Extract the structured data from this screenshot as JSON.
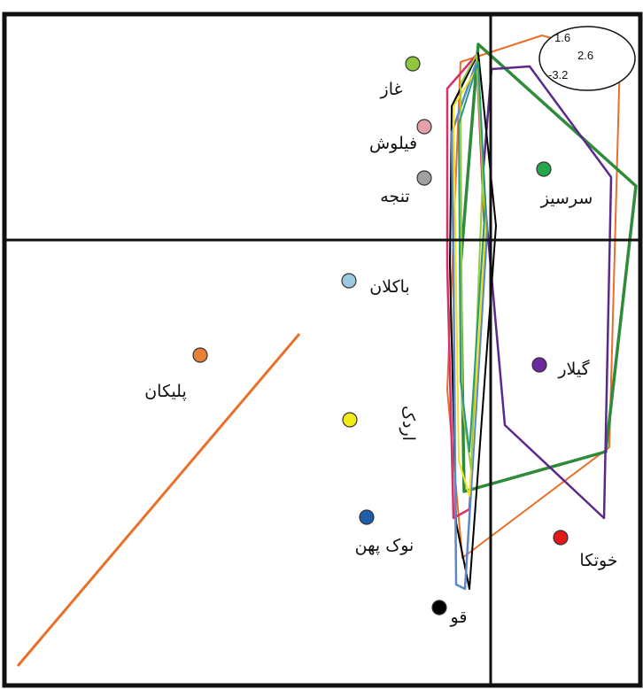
{
  "chart_data": {
    "type": "scatter",
    "title": "",
    "xlabel": "",
    "ylabel": "",
    "grid": false,
    "legend": "none",
    "points": [
      {
        "label": "غاز",
        "color": "#8dc63f"
      },
      {
        "label": "فیلوش",
        "color": "#e8a0a8"
      },
      {
        "label": "تنجه",
        "color": "#a0a0a0"
      },
      {
        "label": "سرسیز",
        "color": "#22a84a"
      },
      {
        "label": "باکلان",
        "color": "#9ec8e0"
      },
      {
        "label": "گیلار",
        "color": "#6a2aa0"
      },
      {
        "label": "پلیکان",
        "color": "#e8823a"
      },
      {
        "label": "اردک",
        "color": "#f2ea18"
      },
      {
        "label": "نوک پهن",
        "color": "#1f5fa8"
      },
      {
        "label": "خوتکا",
        "color": "#e31818"
      },
      {
        "label": "قو",
        "color": "#000000"
      }
    ],
    "inset_values": [
      "1.6",
      "2.6",
      "-3.2"
    ],
    "polygon_colors": [
      "#e8702a",
      "#2f8a3a",
      "#5a2a8a",
      "#000000",
      "#d8306a",
      "#5a88c8",
      "#f0e020",
      "#9ac840",
      "#2a9a7a"
    ],
    "fitted_line_color": "#e8702a"
  }
}
